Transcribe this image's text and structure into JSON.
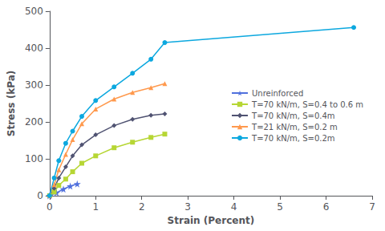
{
  "chart_data": {
    "type": "line",
    "xlabel": "Strain (Percent)",
    "ylabel": "Stress (kPa)",
    "xlim": [
      0,
      7
    ],
    "ylim": [
      0,
      500
    ],
    "xticks": [
      0,
      1,
      2,
      3,
      4,
      5,
      6,
      7
    ],
    "yticks": [
      0,
      100,
      200,
      300,
      400,
      500
    ],
    "grid": false,
    "legend": "center right",
    "series": [
      {
        "name": "Unreinforced",
        "marker": "star",
        "x": [
          0.0,
          0.15,
          0.3,
          0.45,
          0.6
        ],
        "values": [
          0,
          8,
          18,
          26,
          32
        ]
      },
      {
        "name": "T=70 kN/m, S=0.4 to 0.6 m",
        "marker": "square",
        "x": [
          0.0,
          0.1,
          0.2,
          0.35,
          0.5,
          0.7,
          1.0,
          1.4,
          1.8,
          2.2,
          2.5
        ],
        "values": [
          0,
          10,
          28,
          45,
          65,
          88,
          108,
          130,
          145,
          158,
          167
        ]
      },
      {
        "name": "T=70 kN/m, S=0.4m",
        "marker": "diamond",
        "x": [
          0.0,
          0.1,
          0.2,
          0.35,
          0.5,
          0.7,
          1.0,
          1.4,
          1.8,
          2.2,
          2.5
        ],
        "values": [
          0,
          20,
          48,
          78,
          108,
          138,
          165,
          190,
          207,
          218,
          222
        ]
      },
      {
        "name": "T=21 kN/m, S=0.2 m",
        "marker": "triangle",
        "x": [
          0.0,
          0.1,
          0.2,
          0.35,
          0.5,
          0.7,
          1.0,
          1.4,
          1.8,
          2.2,
          2.5
        ],
        "values": [
          0,
          30,
          70,
          112,
          152,
          195,
          235,
          262,
          280,
          293,
          304
        ]
      },
      {
        "name": "T=70 kN/m, S=0.2m",
        "marker": "circle",
        "x": [
          0.0,
          0.1,
          0.2,
          0.35,
          0.5,
          0.7,
          1.0,
          1.4,
          1.8,
          2.2,
          2.5,
          6.6
        ],
        "values": [
          0,
          48,
          95,
          142,
          175,
          215,
          258,
          295,
          332,
          370,
          415,
          456
        ]
      }
    ]
  }
}
